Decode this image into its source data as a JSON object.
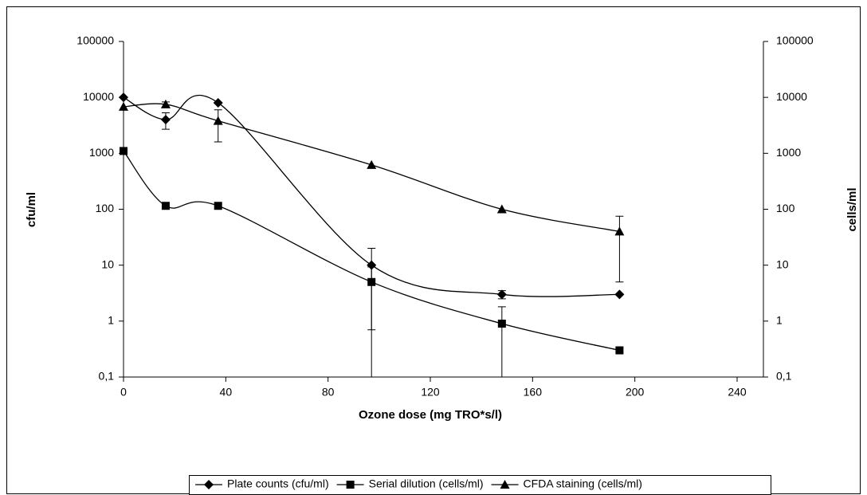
{
  "chart_data": {
    "type": "line",
    "x_label": "Ozone dose (mg TRO*s/l)",
    "y_label": "cfu/ml",
    "y2_label": "cells/ml",
    "xlim": [
      0,
      240
    ],
    "xticks": [
      0,
      40,
      80,
      120,
      160,
      200,
      240
    ],
    "ylim": [
      0.1,
      100000
    ],
    "yticks": [
      {
        "value": 0.1,
        "label": "0,1"
      },
      1,
      10,
      100,
      1000,
      10000,
      100000
    ],
    "y2lim": [
      0.1,
      100000
    ],
    "y2ticks": [
      {
        "value": 0.1,
        "label": "0,1"
      },
      1,
      10,
      100,
      1000,
      10000,
      100000
    ],
    "log_scale": true,
    "smooth": true,
    "legend": "bottom",
    "series": [
      {
        "name": "Plate counts (cfu/ml)",
        "color": "#000000",
        "marker": "diamond",
        "x": [
          0,
          16.5,
          37,
          97,
          148,
          194
        ],
        "values": [
          10000,
          4000,
          8000,
          10,
          3,
          3
        ],
        "errors": [
          null,
          1300,
          null,
          10,
          0.5,
          null
        ]
      },
      {
        "name": "Serial dilution (cells/ml)",
        "color": "#000000",
        "marker": "square",
        "axis": "y2",
        "x": [
          0,
          16.5,
          37,
          97,
          148,
          194
        ],
        "values": [
          1100,
          115,
          115,
          5,
          0.9,
          0.3
        ],
        "errors": [
          null,
          null,
          null,
          4.3,
          0.9,
          null
        ]
      },
      {
        "name": "CFDA staining (cells/ml)",
        "color": "#000000",
        "marker": "triangle",
        "axis": "y2",
        "x": [
          0,
          16.5,
          37,
          97,
          148,
          194
        ],
        "values": [
          6800,
          7500,
          3800,
          620,
          100,
          40
        ],
        "errors": [
          null,
          800,
          2200,
          null,
          null,
          35
        ]
      }
    ]
  }
}
